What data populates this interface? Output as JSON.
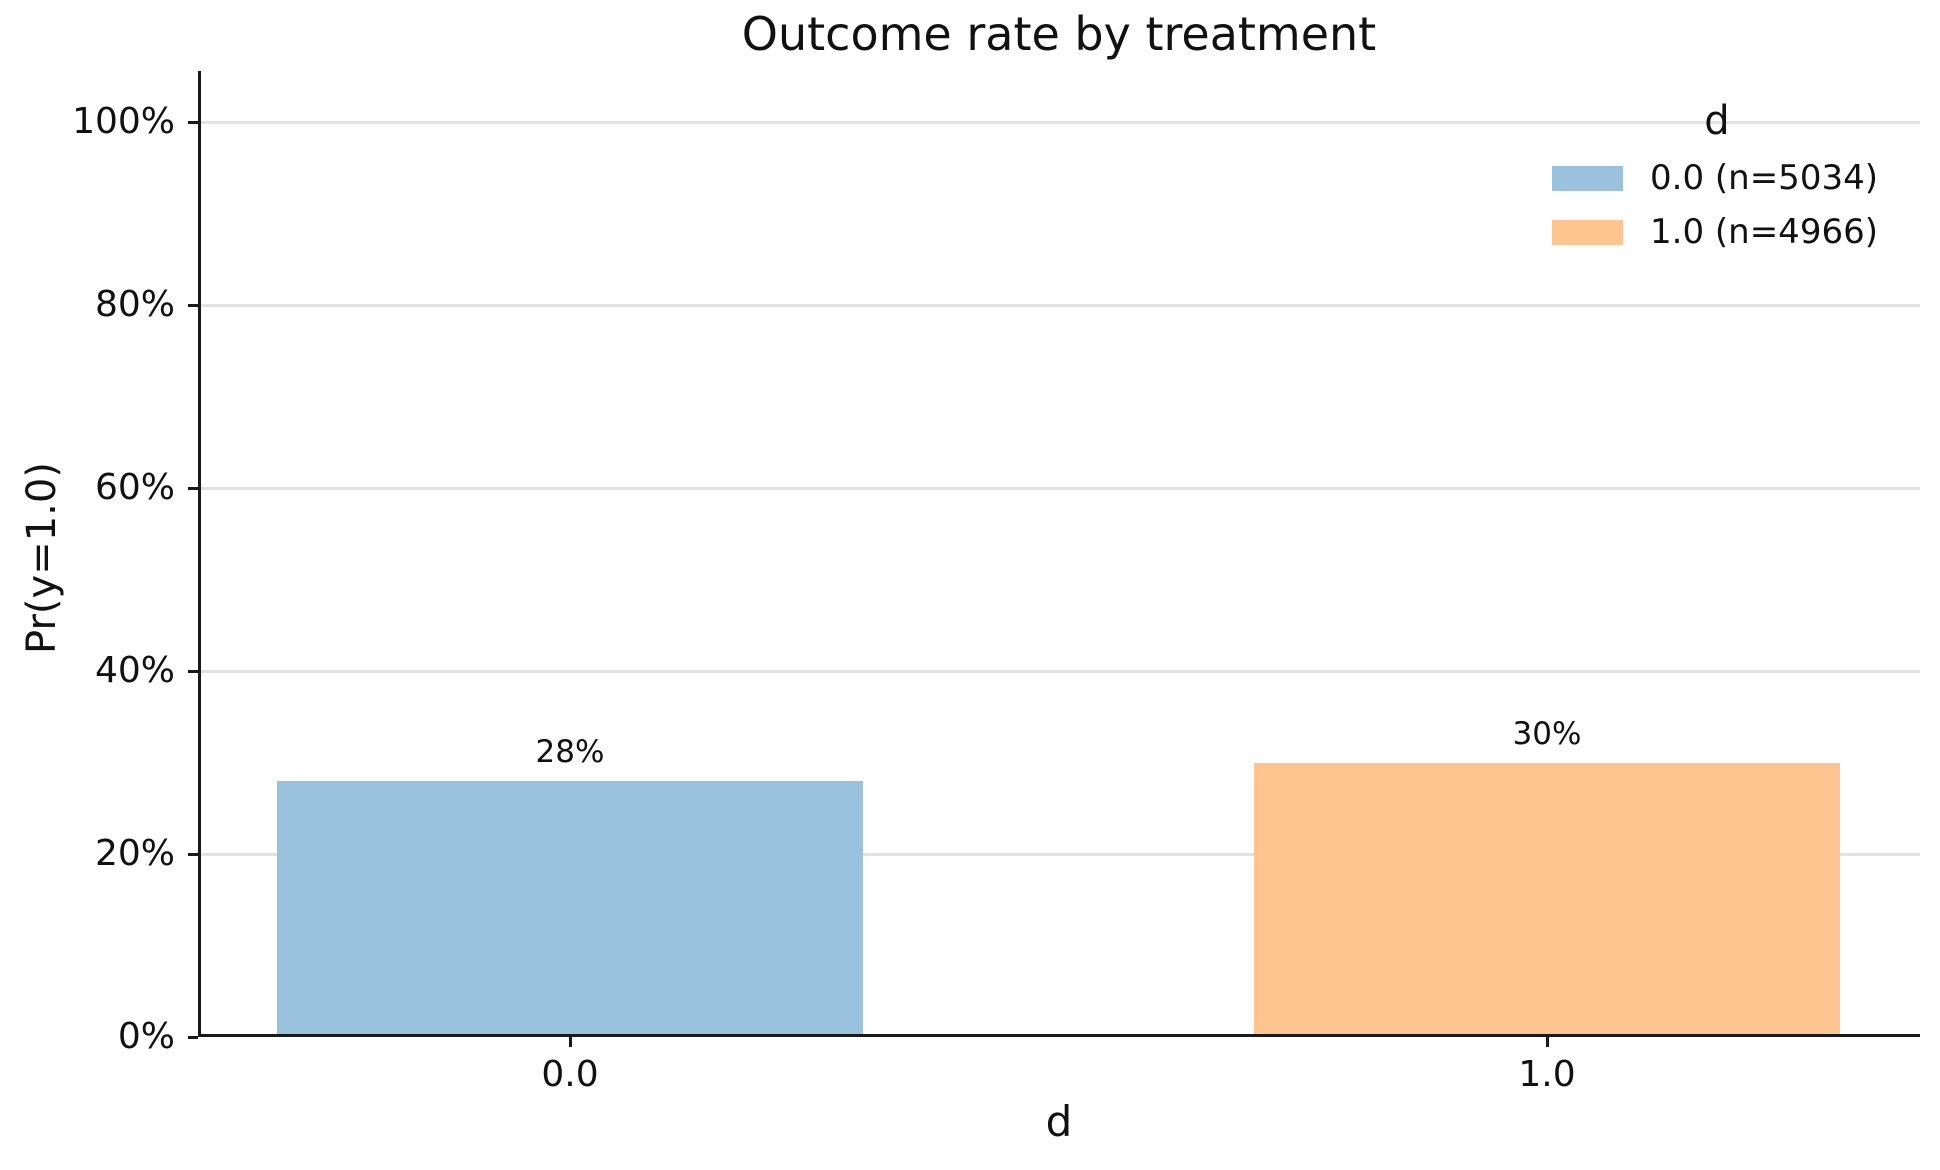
{
  "chart_data": {
    "type": "bar",
    "title": "Outcome rate by treatment",
    "xlabel": "d",
    "ylabel": "Pr(y=1.0)",
    "categories": [
      "0.0",
      "1.0"
    ],
    "values_pct": [
      28,
      30
    ],
    "bar_labels": [
      "28%",
      "30%"
    ],
    "bar_colors": [
      "#9ac2de",
      "#ffc48f"
    ],
    "ylim_pct": [
      0,
      105.6
    ],
    "grid": "horizontal",
    "gridline_color": "#e2e2e2",
    "yticks": [
      {
        "value_pct": 0,
        "label": "0%"
      },
      {
        "value_pct": 20,
        "label": "20%"
      },
      {
        "value_pct": 40,
        "label": "40%"
      },
      {
        "value_pct": 60,
        "label": "60%"
      },
      {
        "value_pct": 80,
        "label": "80%"
      },
      {
        "value_pct": 100,
        "label": "100%"
      }
    ],
    "legend": {
      "title": "d",
      "position": "upper right",
      "frame": false,
      "entries": [
        {
          "label": "0.0 (n=5034)",
          "color": "#9ac2de"
        },
        {
          "label": "1.0 (n=4966)",
          "color": "#ffc48f"
        }
      ]
    }
  },
  "colors": {
    "background": "#ffffff",
    "spine": "#1a1a1a",
    "text": "#111111",
    "treated_orange": "#ffc48f",
    "control_blue": "#9ac2de"
  }
}
